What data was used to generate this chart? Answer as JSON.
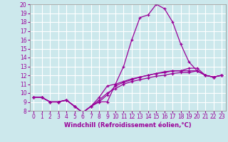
{
  "xlabel": "Windchill (Refroidissement éolien,°C)",
  "background_color": "#cce8ec",
  "grid_color": "#ffffff",
  "line_color": "#990099",
  "xlim": [
    -0.5,
    23.5
  ],
  "ylim": [
    8,
    20
  ],
  "xticks": [
    0,
    1,
    2,
    3,
    4,
    5,
    6,
    7,
    8,
    9,
    10,
    11,
    12,
    13,
    14,
    15,
    16,
    17,
    18,
    19,
    20,
    21,
    22,
    23
  ],
  "yticks": [
    8,
    9,
    10,
    11,
    12,
    13,
    14,
    15,
    16,
    17,
    18,
    19,
    20
  ],
  "lines": [
    [
      9.5,
      9.5,
      9.0,
      9.0,
      9.2,
      8.5,
      7.8,
      8.5,
      9.0,
      9.0,
      11.0,
      13.0,
      16.0,
      18.5,
      18.8,
      20.0,
      19.5,
      18.0,
      15.5,
      13.5,
      12.5,
      12.0,
      11.8,
      12.0
    ],
    [
      9.5,
      9.5,
      9.0,
      9.0,
      9.2,
      8.5,
      7.8,
      8.5,
      9.0,
      9.8,
      10.8,
      11.2,
      11.5,
      11.8,
      12.0,
      12.2,
      12.3,
      12.5,
      12.5,
      12.8,
      12.8,
      12.0,
      11.8,
      12.0
    ],
    [
      9.5,
      9.5,
      9.0,
      9.0,
      9.2,
      8.5,
      7.8,
      8.5,
      9.2,
      10.0,
      10.5,
      11.0,
      11.3,
      11.5,
      11.7,
      11.9,
      12.0,
      12.2,
      12.3,
      12.3,
      12.5,
      12.0,
      11.8,
      12.0
    ],
    [
      9.5,
      9.5,
      9.0,
      9.0,
      9.2,
      8.5,
      7.8,
      8.5,
      9.5,
      10.8,
      11.0,
      11.3,
      11.6,
      11.8,
      12.0,
      12.2,
      12.4,
      12.5,
      12.5,
      12.5,
      12.5,
      12.0,
      11.8,
      12.0
    ]
  ],
  "tick_fontsize": 5.5,
  "xlabel_fontsize": 6.0
}
